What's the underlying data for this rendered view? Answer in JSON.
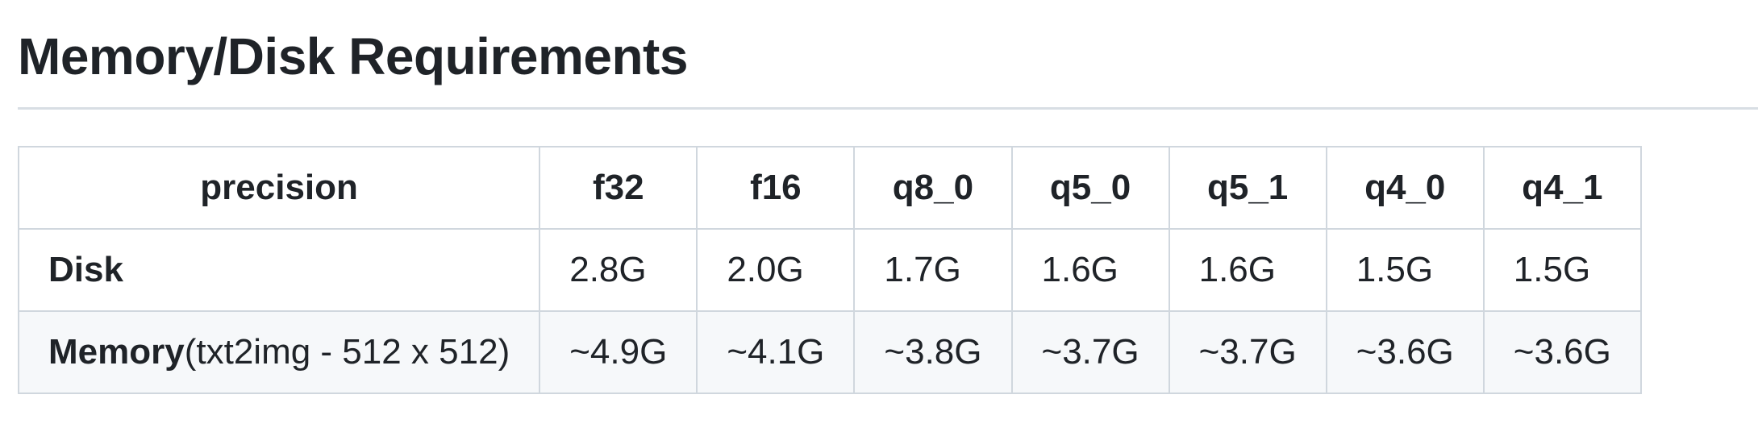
{
  "heading": "Memory/Disk Requirements",
  "table": {
    "headers": [
      "precision",
      "f32",
      "f16",
      "q8_0",
      "q5_0",
      "q5_1",
      "q4_0",
      "q4_1"
    ],
    "rows": [
      {
        "label": "Disk",
        "label_suffix": "",
        "values": [
          "2.8G",
          "2.0G",
          "1.7G",
          "1.6G",
          "1.6G",
          "1.5G",
          "1.5G"
        ]
      },
      {
        "label": "Memory",
        "label_suffix": "(txt2img - 512 x 512)",
        "values": [
          "~4.9G",
          "~4.1G",
          "~3.8G",
          "~3.7G",
          "~3.7G",
          "~3.6G",
          "~3.6G"
        ]
      }
    ]
  }
}
